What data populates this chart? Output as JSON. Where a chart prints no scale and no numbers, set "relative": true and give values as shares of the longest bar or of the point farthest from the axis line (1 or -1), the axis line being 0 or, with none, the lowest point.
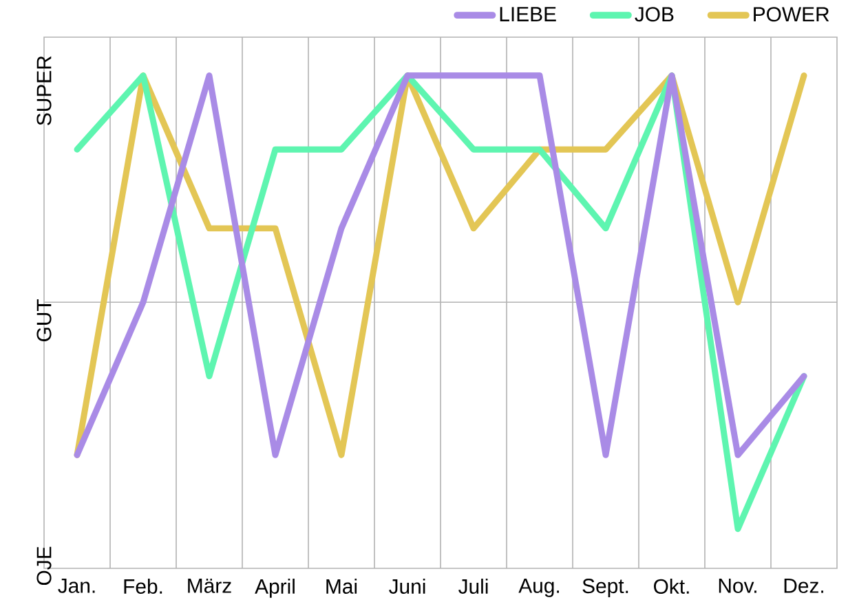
{
  "chart_data": {
    "type": "line",
    "relative": true,
    "categories": [
      "Jan.",
      "Feb.",
      "März",
      "April",
      "Mai",
      "Juni",
      "Juli",
      "Aug.",
      "Sept.",
      "Okt.",
      "Nov.",
      "Dez."
    ],
    "series": [
      {
        "name": "LIEBE",
        "color": "#a98be6",
        "values": [
          0.23,
          0.54,
          1,
          0.23,
          0.69,
          1,
          1,
          1,
          0.23,
          1,
          0.23,
          0.39
        ]
      },
      {
        "name": "JOB",
        "color": "#5ef5b0",
        "values": [
          0.85,
          1,
          0.39,
          0.85,
          0.85,
          1,
          0.85,
          0.85,
          0.69,
          1,
          0.08,
          0.39
        ]
      },
      {
        "name": "POWER",
        "color": "#e3c655",
        "values": [
          0.23,
          1,
          0.69,
          0.69,
          0.23,
          1,
          0.69,
          0.85,
          0.85,
          1,
          0.54,
          1
        ]
      }
    ],
    "annotations": [
      "SUPER",
      "GUT",
      "OJE"
    ],
    "ref_lines": [
      {
        "axis": "y",
        "value": 0.54
      }
    ],
    "grid": "x",
    "legend": "top right",
    "line_style": "solid"
  }
}
